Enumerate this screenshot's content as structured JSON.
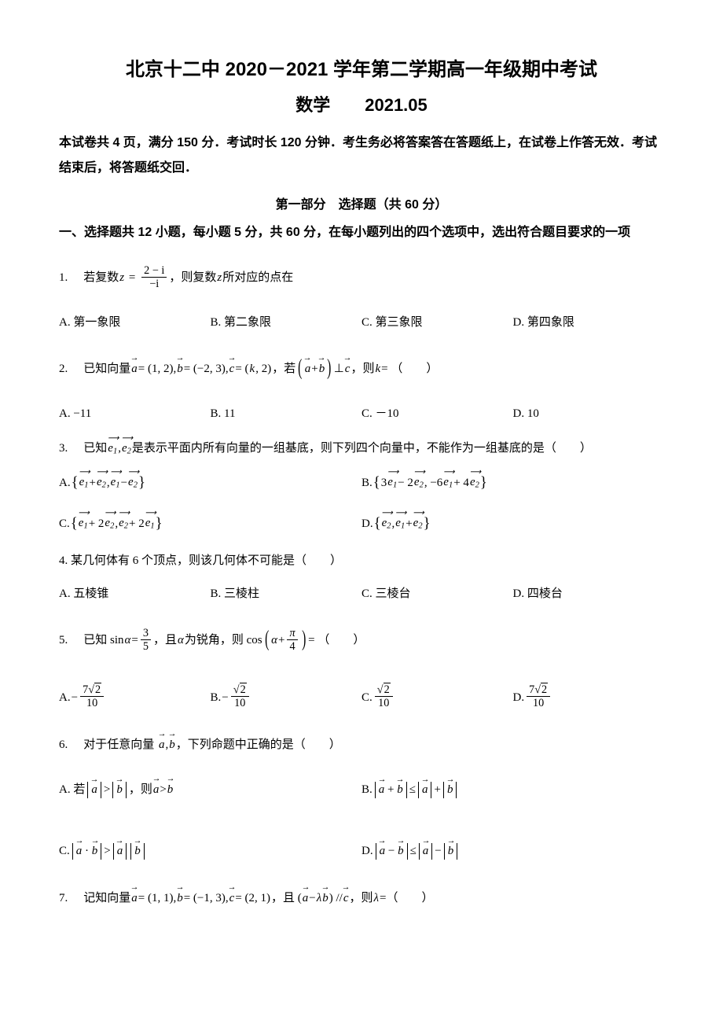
{
  "header": {
    "title": "北京十二中 2020－2021 学年第二学期高一年级期中考试",
    "subject_line": "数学　　2021.05"
  },
  "instructions": "本试卷共 4 页，满分 150 分．考试时长 120 分钟．考生务必将答案答在答题纸上，在试卷上作答无效．考试结束后，将答题纸交回．",
  "section1": {
    "header": "第一部分　选择题（共 60 分）",
    "intro": "一、选择题共 12 小题，每小题 5 分，共 60 分，在每小题列出的四个选项中，选出符合题目要求的一项"
  },
  "q1": {
    "num": "1.",
    "pre": "若复数",
    "z": "z",
    "eq": "=",
    "num_expr": "2 − i",
    "den_expr": "−i",
    "post": "，则复数 ",
    "z2": "z",
    "post2": " 所对应的点在",
    "A": "A. 第一象限",
    "B": "B. 第二象限",
    "C": "C. 第三象限",
    "D": "D. 第四象限"
  },
  "q2": {
    "num": "2.",
    "pre": "已知向量",
    "a": "a",
    "a_eq": " = (1, 2), ",
    "b": "b",
    "b_eq": " = (−2, 3), ",
    "c": "c",
    "c_eq": " = (",
    "k": "k",
    "c_eq2": ", 2)",
    "mid": "，若",
    "plus": " + ",
    "perp": " ⊥ ",
    "post": "，则 ",
    "k2": "k",
    "eq": " = （　　）",
    "A": "A. −11",
    "B": "B. 11",
    "C": "C. －10",
    "D": "D. 10"
  },
  "q3": {
    "num": "3.",
    "pre": "已知",
    "e1": "e",
    "s1": "1",
    "comma": ", ",
    "e2": "e",
    "s2": "2",
    "post": " 是表示平面内所有向量的一组基底，则下列四个向量中，不能作为一组基底的是（　　）",
    "A_pre": "A. ",
    "B_pre": "B. ",
    "C_pre": "C. ",
    "D_pre": "D. ",
    "A1_plus": " + ",
    "A1_comma": ", ",
    "A1_minus": " − ",
    "B_3": "3",
    "B_m2": " − 2",
    "B_comma": ", −6",
    "B_p4": " + 4",
    "C_p2a": " + 2",
    "C_comma": ", ",
    "C_p2b": " + 2",
    "D_comma": ", ",
    "D_plus": " + "
  },
  "q4": {
    "text": "4. 某几何体有 6 个顶点，则该几何体不可能是（　　）",
    "A": "A. 五棱锥",
    "B": "B. 三棱柱",
    "C": "C. 三棱台",
    "D": "D. 四棱台"
  },
  "q5": {
    "num": "5.",
    "pre": "已知 sin ",
    "alpha": "α",
    "eq": " = ",
    "frac_n": "3",
    "frac_d": "5",
    "mid": "，且 ",
    "alpha2": "α",
    "mid2": " 为锐角，则 cos",
    "alpha3": "α",
    "plus": " + ",
    "pi_n": "π",
    "pi_d": "4",
    "post": " = （　　）",
    "A_pre": "A. ",
    "B_pre": "B. ",
    "C_pre": "C. ",
    "D_pre": "D. ",
    "neg": "− ",
    "n7": "7",
    "n2": "2",
    "d10": "10"
  },
  "q6": {
    "num": "6.",
    "pre": "对于任意向量",
    "a": "a",
    "comma": ", ",
    "b": "b",
    "post": "，下列命题中正确的是（　　）",
    "A_pre": "A. 若",
    "A_gt": " > ",
    "A_mid": "，则 ",
    "B_pre": "B. ",
    "B_plus": " + ",
    "B_le": " ≤ ",
    "B_pl2": " + ",
    "C_pre": "C. ",
    "C_dot": " · ",
    "C_gt": " > ",
    "D_pre": "D. ",
    "D_minus": " − ",
    "D_le": " ≤ ",
    "D_m2": " − "
  },
  "q7": {
    "num": "7.",
    "pre": "记知向量",
    "a": "a",
    "a_eq": " = (1, 1), ",
    "b": "b",
    "b_eq": " = (−1, 3), ",
    "c": "c",
    "c_eq": " = (2, 1)",
    "mid": "，且 (",
    "minus": " − ",
    "lam": "λ",
    "rp": ") // ",
    "post": "，则 ",
    "lam2": "λ",
    "eq": " =（　　）"
  },
  "colors": {
    "text": "#000000",
    "background": "#ffffff"
  },
  "typography": {
    "title_fontsize": 24,
    "body_fontsize": 15,
    "font_family": "SimSun"
  }
}
